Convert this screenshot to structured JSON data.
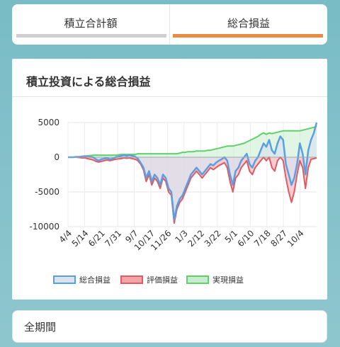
{
  "tabs": [
    {
      "label": "積立合計額",
      "active": false
    },
    {
      "label": "総合損益",
      "active": true
    }
  ],
  "colors": {
    "accent": "#ec8a3d",
    "inactive_bar": "#cfcfcf",
    "sogo_line": "#5b9fe0",
    "sogo_fill": "#d9e4ef",
    "hyoka_line": "#e05a62",
    "hyoka_fill": "#f4a3a8",
    "jitsugen_line": "#5fd06a",
    "jitsugen_fill": "#c8eccf"
  },
  "card": {
    "title": "積立投資による総合損益"
  },
  "period": {
    "label": "全期間"
  },
  "chart_data": {
    "type": "area",
    "title": "",
    "xlabel": "",
    "ylabel": "",
    "ylim": [
      -10000,
      5000
    ],
    "yticks": [
      5000,
      0,
      -5000,
      -10000
    ],
    "ytick_labels": [
      "5000",
      "0",
      "-5000",
      "-10000"
    ],
    "grid": true,
    "legend_position": "bottom",
    "x_tick_labels": [
      "4/4",
      "5/14",
      "6/21",
      "7/31",
      "9/7",
      "10/17",
      "11/26",
      "1/3",
      "2/12",
      "3/22",
      "5/1",
      "6/10",
      "7/18",
      "8/27",
      "10/4"
    ],
    "x": [
      0,
      2,
      4,
      6,
      8,
      10,
      12,
      14,
      16,
      18,
      20,
      22,
      24,
      26,
      28,
      30,
      32,
      34,
      36,
      38,
      40,
      42,
      44,
      46,
      48,
      50,
      52,
      54,
      56,
      58,
      60,
      62,
      64,
      66,
      68,
      70,
      72,
      74,
      76,
      78,
      80,
      82,
      84,
      86,
      88,
      90,
      92,
      94,
      96,
      98,
      100,
      102,
      104,
      106,
      108,
      110,
      112,
      114,
      116,
      118,
      120,
      122,
      124,
      126,
      128,
      130,
      132,
      134,
      136,
      138,
      140,
      142,
      144,
      146,
      148,
      150,
      152,
      154,
      156,
      158,
      160,
      162,
      164,
      166,
      168,
      170,
      172,
      174,
      176,
      178
    ],
    "series": [
      {
        "name": "総合損益",
        "values": [
          0,
          0,
          0,
          50,
          50,
          100,
          150,
          100,
          50,
          0,
          -300,
          -500,
          -300,
          -200,
          -100,
          -300,
          -200,
          0,
          100,
          200,
          300,
          200,
          300,
          200,
          100,
          -200,
          -800,
          -1500,
          -3000,
          -2000,
          -3500,
          -2500,
          -3000,
          -4000,
          -2500,
          -3000,
          -4500,
          -5000,
          -9000,
          -7000,
          -6000,
          -5500,
          -4500,
          -3500,
          -2500,
          -2000,
          -1500,
          -2000,
          -2500,
          -2000,
          -1500,
          -1000,
          -1200,
          -800,
          -500,
          -300,
          0,
          -500,
          -2500,
          -4000,
          -2000,
          -1500,
          -500,
          0,
          500,
          -1000,
          -1500,
          -500,
          0,
          1000,
          2000,
          1500,
          2500,
          1000,
          500,
          2000,
          3000,
          2500,
          -1000,
          -2500,
          -4000,
          -3000,
          -1000,
          2000,
          500,
          -2500,
          1000,
          2500,
          3500,
          5000
        ]
      },
      {
        "name": "評価損益",
        "values": [
          0,
          0,
          0,
          0,
          -50,
          -100,
          -100,
          -200,
          -300,
          -400,
          -600,
          -700,
          -600,
          -500,
          -400,
          -500,
          -400,
          -300,
          -250,
          -200,
          -100,
          -150,
          -100,
          -200,
          -300,
          -500,
          -1000,
          -1800,
          -3500,
          -2500,
          -4000,
          -3000,
          -3500,
          -4500,
          -3000,
          -3500,
          -5000,
          -5500,
          -9500,
          -7500,
          -6500,
          -6000,
          -5000,
          -4000,
          -3000,
          -2500,
          -2000,
          -2500,
          -3000,
          -2500,
          -2000,
          -1500,
          -1800,
          -1500,
          -1200,
          -1000,
          -800,
          -1500,
          -3500,
          -5000,
          -3000,
          -2500,
          -1500,
          -1000,
          -500,
          -2000,
          -2500,
          -1500,
          -1000,
          -500,
          0,
          -500,
          0,
          -1500,
          -2000,
          -500,
          0,
          -500,
          -3000,
          -5000,
          -6500,
          -5000,
          -2500,
          -500,
          -1500,
          -4500,
          -1500,
          -300,
          -200,
          -100
        ]
      },
      {
        "name": "実現損益",
        "values": [
          0,
          0,
          0,
          50,
          50,
          100,
          150,
          200,
          250,
          300,
          300,
          300,
          300,
          300,
          300,
          300,
          300,
          300,
          350,
          400,
          400,
          400,
          400,
          400,
          400,
          500,
          500,
          500,
          500,
          500,
          500,
          500,
          500,
          500,
          500,
          500,
          500,
          500,
          500,
          500,
          600,
          700,
          700,
          800,
          800,
          800,
          900,
          900,
          900,
          900,
          1000,
          1000,
          1100,
          1200,
          1300,
          1400,
          1500,
          1600,
          1600,
          1600,
          1700,
          1800,
          1900,
          2000,
          2200,
          2400,
          2600,
          2800,
          3000,
          3300,
          3500,
          3300,
          3500,
          3400,
          3500,
          3600,
          3700,
          3800,
          3800,
          3800,
          3800,
          3800,
          3800,
          3800,
          3900,
          4000,
          4100,
          4200,
          4300,
          4500
        ]
      }
    ]
  }
}
